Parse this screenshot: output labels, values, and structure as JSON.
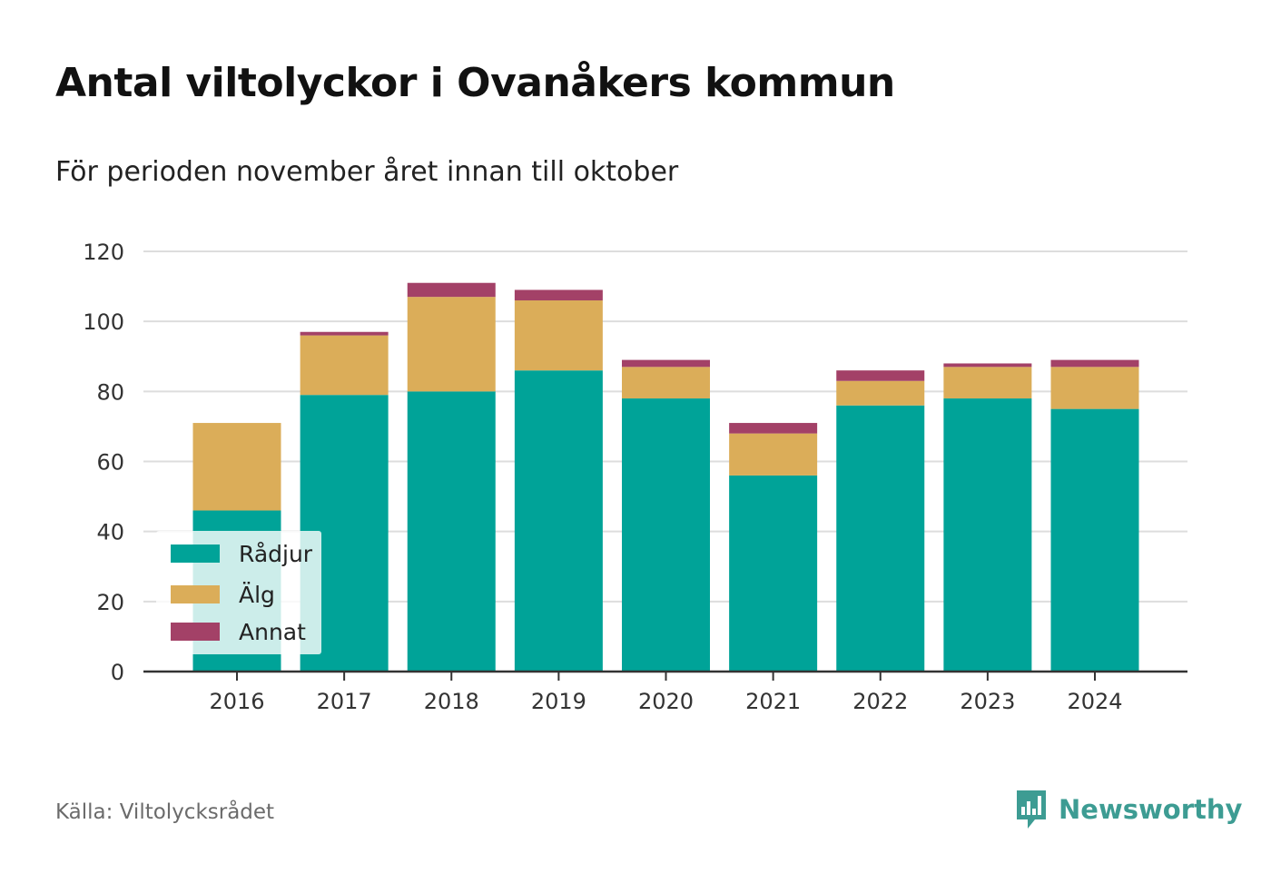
{
  "title": "Antal viltolyckor i Ovanåkers kommun",
  "subtitle": "För perioden november året innan till oktober",
  "source": "Källa: Viltolycksrådet",
  "brand": {
    "name": "Newsworthy",
    "icon": "newsworthy-logo-icon",
    "color": "#3d9c93"
  },
  "colors": {
    "Rådjur": "#00a398",
    "Älg": "#dbad59",
    "Annat": "#a34167",
    "grid": "#dddddd",
    "axis": "#333333"
  },
  "chart_data": {
    "type": "bar",
    "stacked": true,
    "categories": [
      "2016",
      "2017",
      "2018",
      "2019",
      "2020",
      "2021",
      "2022",
      "2023",
      "2024"
    ],
    "series": [
      {
        "name": "Rådjur",
        "color": "#00a398",
        "values": [
          46,
          79,
          80,
          86,
          78,
          56,
          76,
          78,
          75
        ]
      },
      {
        "name": "Älg",
        "color": "#dbad59",
        "values": [
          25,
          17,
          27,
          20,
          9,
          12,
          7,
          9,
          12
        ]
      },
      {
        "name": "Annat",
        "color": "#a34167",
        "values": [
          0,
          1,
          4,
          3,
          2,
          3,
          3,
          1,
          2
        ]
      }
    ],
    "ylim": [
      0,
      120
    ],
    "yticks": [
      0,
      20,
      40,
      60,
      80,
      100,
      120
    ],
    "grid": true,
    "legend_position": "bottom-left"
  }
}
